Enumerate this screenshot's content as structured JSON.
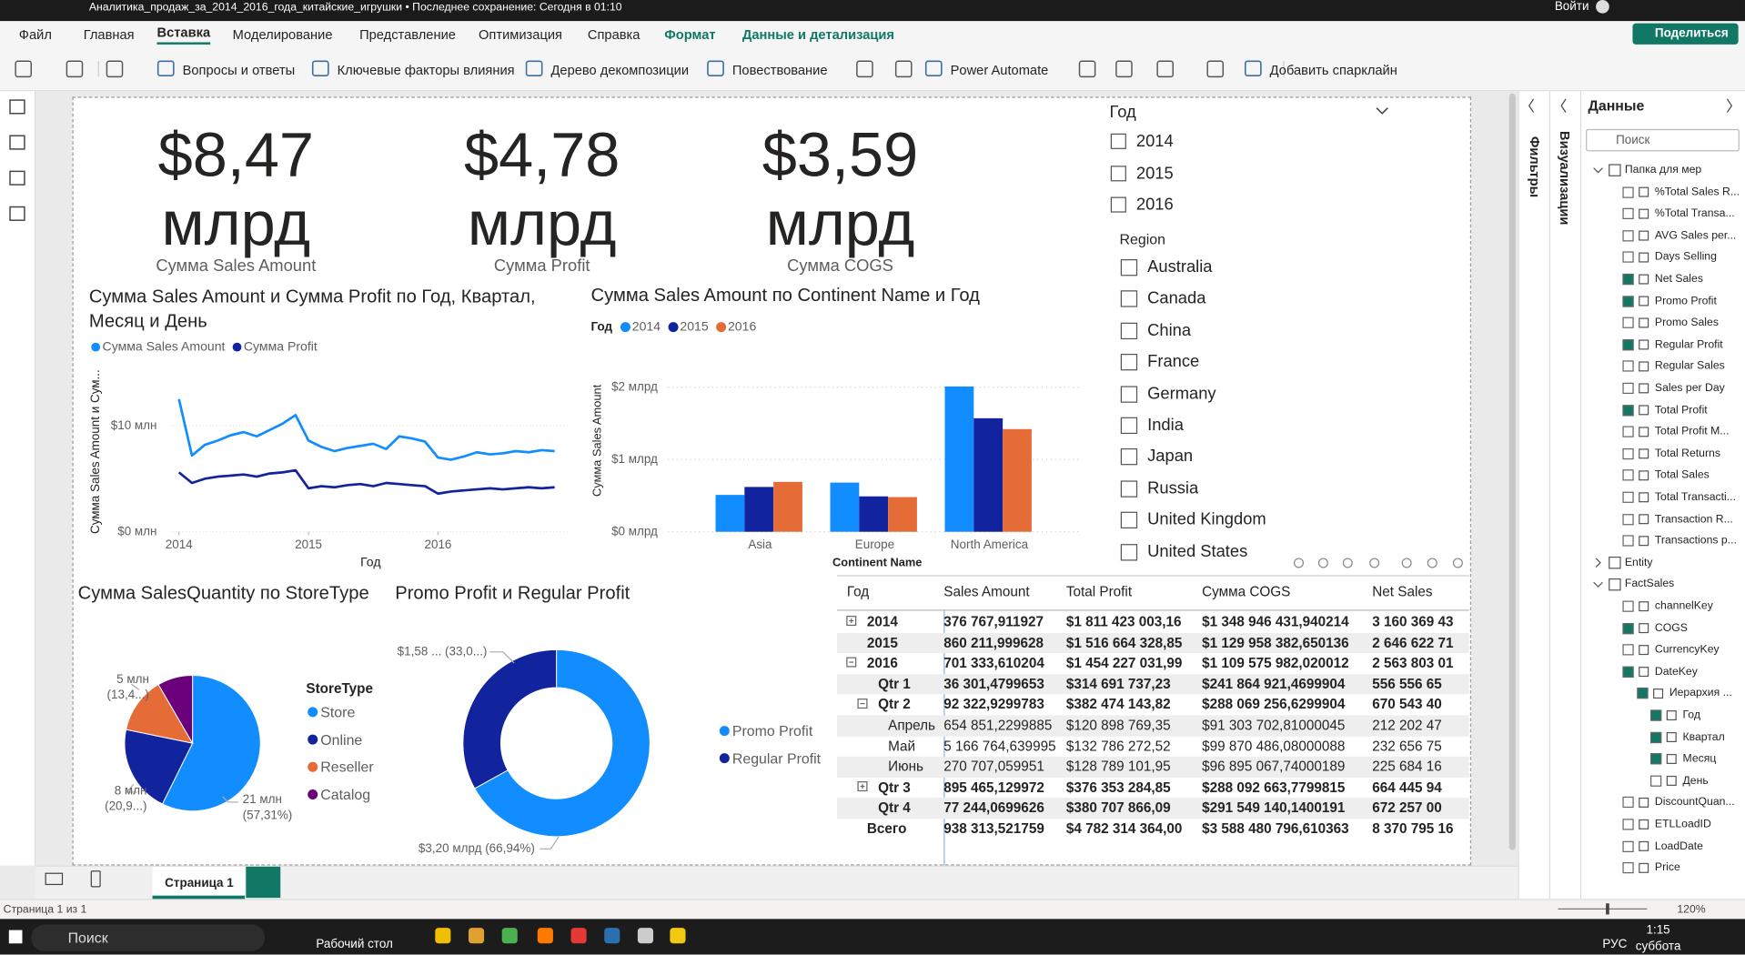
{
  "window": {
    "title": "Аналитика_продаж_за_2014_2016_года_китайские_игрушки • Последнее сохранение: Сегодня в 01:10",
    "signin": "Войти",
    "share": "Поделиться"
  },
  "menu": [
    "Файл",
    "Главная",
    "Вставка",
    "Моделирование",
    "Представление",
    "Оптимизация",
    "Справка",
    "Формат",
    "Данные и детализация"
  ],
  "toolbar": [
    "Вопросы и ответы",
    "Ключевые факторы влияния",
    "Дерево декомпозиции",
    "Повествование",
    "Power Automate",
    "Добавить спарклайн"
  ],
  "cards": [
    {
      "value": "$8,47 млрд",
      "label": "Сумма Sales Amount"
    },
    {
      "value": "$4,78 млрд",
      "label": "Сумма Profit"
    },
    {
      "value": "$3,59 млрд",
      "label": "Сумма COGS"
    }
  ],
  "slicer_year": {
    "title": "Год",
    "items": [
      "2014",
      "2015",
      "2016"
    ]
  },
  "slicer_region": {
    "title": "Region",
    "items": [
      "Australia",
      "Canada",
      "China",
      "France",
      "Germany",
      "India",
      "Japan",
      "Russia",
      "United Kingdom",
      "United States"
    ]
  },
  "line_chart": {
    "type": "line",
    "title": "Сумма Sales Amount и Сумма Profit по Год, Квартал, Месяц и День",
    "x_label": "Год",
    "y_label": "Сумма Sales Amount и Сум...",
    "x": [
      2014.0,
      2014.1,
      2014.2,
      2014.3,
      2014.4,
      2014.5,
      2014.6,
      2014.7,
      2014.8,
      2014.9,
      2015.0,
      2015.1,
      2015.2,
      2015.3,
      2015.4,
      2015.5,
      2015.6,
      2015.7,
      2015.8,
      2015.9,
      2016.0,
      2016.1,
      2016.2,
      2016.3,
      2016.4,
      2016.5,
      2016.6,
      2016.7,
      2016.8,
      2016.9
    ],
    "xlim": [
      2013.95,
      2017.0
    ],
    "xticks": [
      2014,
      2015,
      2016
    ],
    "ylim": [
      0,
      15
    ],
    "yticks": [
      {
        "value": 0,
        "label": "$0 млн"
      },
      {
        "value": 10,
        "label": "$10 млн"
      }
    ],
    "series": [
      {
        "name": "Сумма Sales Amount",
        "color": "#118DFF",
        "values": [
          12.5,
          7.2,
          8.2,
          8.6,
          9.1,
          9.4,
          9.0,
          9.6,
          10.2,
          11.0,
          8.6,
          8.0,
          7.6,
          7.9,
          8.1,
          8.3,
          7.8,
          9.0,
          8.8,
          8.5,
          7.0,
          6.8,
          7.1,
          7.5,
          7.3,
          7.4,
          7.6,
          7.5,
          7.7,
          7.6
        ]
      },
      {
        "name": "Сумма Profit",
        "color": "#12239E",
        "values": [
          5.6,
          4.6,
          5.0,
          5.2,
          5.3,
          5.4,
          5.2,
          5.5,
          5.6,
          5.8,
          4.1,
          4.3,
          4.2,
          4.4,
          4.5,
          4.3,
          4.6,
          4.5,
          4.4,
          4.3,
          3.6,
          3.8,
          3.9,
          4.0,
          4.1,
          4.0,
          4.1,
          4.2,
          4.1,
          4.2
        ]
      }
    ]
  },
  "bar_chart": {
    "type": "bar",
    "title": "Сумма Sales Amount по Continent Name и Год",
    "legend_title": "Год",
    "x_label": "Continent Name",
    "y_label": "Сумма Sales Amount",
    "categories": [
      "Asia",
      "Europe",
      "North America"
    ],
    "ylim": [
      0,
      2.1
    ],
    "yticks": [
      {
        "value": 0,
        "label": "$0 млрд"
      },
      {
        "value": 1,
        "label": "$1 млрд"
      },
      {
        "value": 2,
        "label": "$2 млрд"
      }
    ],
    "series": [
      {
        "name": "2014",
        "color": "#118DFF",
        "values": [
          0.51,
          0.68,
          2.01
        ]
      },
      {
        "name": "2015",
        "color": "#12239E",
        "values": [
          0.62,
          0.49,
          1.57
        ]
      },
      {
        "name": "2016",
        "color": "#E66C37",
        "values": [
          0.69,
          0.48,
          1.42
        ]
      }
    ]
  },
  "pie_chart": {
    "type": "pie",
    "title": "Сумма SalesQuantity по StoreType",
    "legend_title": "StoreType",
    "categories": [
      "Store",
      "Online",
      "Reseller",
      "Catalog"
    ],
    "colors": [
      "#118DFF",
      "#12239E",
      "#E66C37",
      "#6B007B"
    ],
    "values": [
      20.98,
      7.65,
      4.9,
      3.07
    ],
    "value_labels": [
      "21 млн (57,31%)",
      "8 млн (20,9...)",
      "5 млн (13,4...)",
      null
    ]
  },
  "donut_chart": {
    "type": "donut",
    "title": "Promo Profit и Regular Profit",
    "categories": [
      "Promo Profit",
      "Regular Profit"
    ],
    "colors": [
      "#118DFF",
      "#12239E"
    ],
    "values": [
      3.2,
      1.58
    ],
    "value_labels": [
      "$3,20 млрд (66,94%)",
      "$1,58 ... (33,0...)"
    ]
  },
  "table": {
    "columns": [
      "Год",
      "Sales Amount",
      "Total Profit",
      "Сумма COGS",
      "Net Sales"
    ],
    "rows": [
      [
        "2014",
        "376 767,911927",
        "$1 811 423 003,16",
        "$1 348 946 431,940214",
        "3 160 369 43"
      ],
      [
        "2015",
        "860 211,999628",
        "$1 516 664 328,85",
        "$1 129 958 382,650136",
        "2 646 622 71"
      ],
      [
        "2016",
        "701 333,610204",
        "$1 454 227 031,99",
        "$1 109 575 982,020012",
        "2 563 803 01"
      ],
      [
        "Qtr 1",
        "36 301,4799653",
        "$314 691 737,23",
        "$241 864 921,4699904",
        "556 556 65"
      ],
      [
        "Qtr 2",
        "92 322,9299783",
        "$382 474 143,82",
        "$288 069 256,6299904",
        "670 543 40"
      ],
      [
        "Апрель",
        "654 851,2299885",
        "$120 898 769,35",
        "$91 303 702,81000045",
        "212 202 47"
      ],
      [
        "Май",
        "5 166 764,639995",
        "$132 786 272,52",
        "$99 870 486,08000088",
        "232 656 75"
      ],
      [
        "Июнь",
        "270 707,059951",
        "$128 789 101,95",
        "$96 895 067,74000189",
        "225 684 16"
      ],
      [
        "Qtr 3",
        "895 465,129972",
        "$376 353 284,85",
        "$288 092 663,7799815",
        "664 445 94"
      ],
      [
        "Qtr 4",
        "77 244,0699626",
        "$380 707 866,09",
        "$291 549 140,1400191",
        "672 257 00"
      ],
      [
        "Всего",
        "938 313,521759",
        "$4 782 314 364,00",
        "$3 588 480 796,610363",
        "8 370 795 16"
      ]
    ]
  },
  "panes": {
    "filters": "Фильтры",
    "visualizations": "Визуализации",
    "data": "Данные",
    "search": "Поиск"
  },
  "fields": [
    "Папка для мер",
    "%Total Sales R...",
    "%Total Transa...",
    "AVG Sales per...",
    "Days Selling",
    "Net Sales",
    "Promo Profit",
    "Promo Sales",
    "Regular Profit",
    "Regular Sales",
    "Sales per Day",
    "Total Profit",
    "Total Profit M...",
    "Total Returns",
    "Total Sales",
    "Total Transacti...",
    "Transaction R...",
    "Transactions p...",
    "Entity",
    "FactSales",
    "channelKey",
    "COGS",
    "CurrencyKey",
    "DateKey",
    "Иерархия ...",
    "Год",
    "Квартал",
    "Месяц",
    "День",
    "DiscountQuan...",
    "ETLLoadID",
    "LoadDate",
    "Price"
  ],
  "page_tab": "Страница 1",
  "status": {
    "pages": "Страница 1 из 1",
    "zoom": "120%"
  },
  "taskbar": {
    "search": "Поиск",
    "desktop": "Рабочий стол",
    "language": "РУС",
    "time": "1:15",
    "day": "суббота"
  }
}
